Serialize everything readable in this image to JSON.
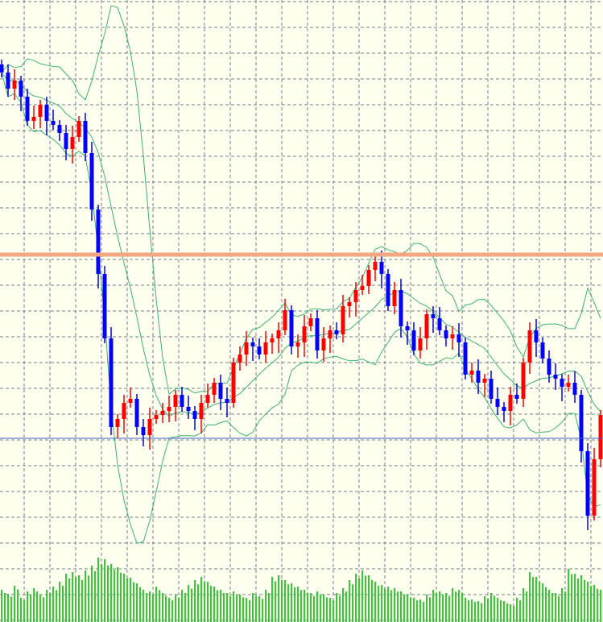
{
  "chart_data": {
    "type": "candlestick",
    "title": "",
    "xlabel": "",
    "ylabel": "",
    "ylim": [
      0,
      77.2
    ],
    "grid": true,
    "legend": "none",
    "indicators": [
      "bollinger-bands",
      "volume"
    ],
    "bollinger": {
      "period": 10,
      "deviations": 2
    },
    "close": [
      68.2,
      66.2,
      67.2,
      65.2,
      62.2,
      62.7,
      64.2,
      62.2,
      61.7,
      60.7,
      58.7,
      60.2,
      62.2,
      58.2,
      51.2,
      43.2,
      35.2,
      24.2,
      25.2,
      27.2,
      27.7,
      24.2,
      23.2,
      25.2,
      25.7,
      26.2,
      26.7,
      28.2,
      26.7,
      26.2,
      25.2,
      27.2,
      28.2,
      29.7,
      27.7,
      27.2,
      32.2,
      33.2,
      34.7,
      34.2,
      33.2,
      34.7,
      35.2,
      36.2,
      38.7,
      34.2,
      34.7,
      36.7,
      37.7,
      33.7,
      35.2,
      36.2,
      35.7,
      39.2,
      39.7,
      41.2,
      41.7,
      43.7,
      44.7,
      43.2,
      39.2,
      41.2,
      36.7,
      36.2,
      33.7,
      35.2,
      38.2,
      37.7,
      36.2,
      35.2,
      35.7,
      34.7,
      30.7,
      31.2,
      29.7,
      30.2,
      27.7,
      26.7,
      26.2,
      28.2,
      27.7,
      32.2,
      36.2,
      34.7,
      32.7,
      30.7,
      30.2,
      29.2,
      29.7,
      28.2,
      21.2,
      13.2,
      20.2,
      25.7
    ],
    "volume": [
      40,
      35,
      45,
      30,
      38,
      42,
      34,
      40,
      44,
      50,
      60,
      62,
      58,
      64,
      70,
      80,
      78,
      72,
      68,
      60,
      55,
      48,
      40,
      38,
      44,
      36,
      30,
      34,
      40,
      46,
      52,
      56,
      50,
      44,
      40,
      36,
      38,
      34,
      30,
      36,
      32,
      40,
      56,
      58,
      52,
      48,
      44,
      40,
      36,
      38,
      34,
      30,
      36,
      42,
      52,
      60,
      64,
      58,
      50,
      46,
      44,
      42,
      38,
      34,
      30,
      28,
      34,
      40,
      38,
      36,
      42,
      40,
      30,
      28,
      26,
      32,
      36,
      30,
      26,
      22,
      30,
      42,
      62,
      56,
      48,
      40,
      36,
      42,
      66,
      60,
      58,
      50,
      46,
      40
    ],
    "levels": [
      {
        "price": 45.6,
        "color": "#f4a582"
      },
      {
        "price": 22.8,
        "color": "#4060c0"
      }
    ],
    "colors": {
      "background": "#fffff0",
      "grid": "#708090",
      "bull": "#ff0000",
      "bear": "#0000ff",
      "bands": "#3cb371",
      "volume": "#32cd32"
    }
  }
}
